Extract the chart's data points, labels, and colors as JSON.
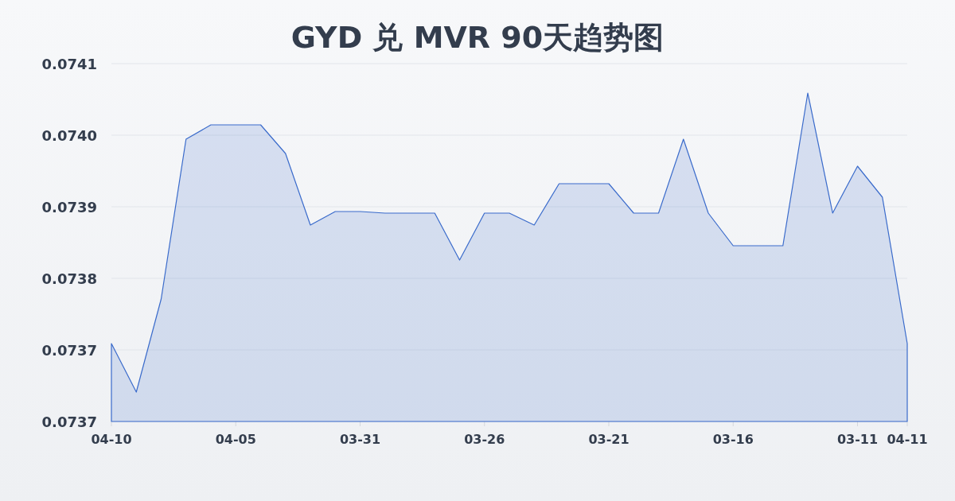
{
  "chart_data": {
    "type": "area",
    "title": "GYD 兑 MVR 90天趋势图",
    "categories": [
      "04-10",
      null,
      null,
      null,
      null,
      "04-05",
      null,
      null,
      null,
      null,
      "03-31",
      null,
      null,
      null,
      null,
      "03-26",
      null,
      null,
      null,
      null,
      "03-21",
      null,
      null,
      null,
      null,
      "03-16",
      null,
      null,
      null,
      null,
      "03-11",
      null,
      "04-11"
    ],
    "values": [
      0.073748,
      0.073687,
      0.073804,
      0.074005,
      0.074023,
      0.074023,
      0.074023,
      0.073987,
      0.073897,
      0.073914,
      0.073914,
      0.073912,
      0.073912,
      0.073912,
      0.073853,
      0.073912,
      0.073912,
      0.073897,
      0.073949,
      0.073949,
      0.073949,
      0.073912,
      0.073912,
      0.074005,
      0.073912,
      0.073871,
      0.073871,
      0.073871,
      0.074063,
      0.073912,
      0.073971,
      0.073932,
      0.073748
    ],
    "color": "#3a6bcb",
    "ylim": [
      0.07365,
      0.0741
    ],
    "yticks": [
      {
        "value": 0.07365,
        "label": "0.0737"
      },
      {
        "value": 0.07374,
        "label": "0.0737"
      },
      {
        "value": 0.07383,
        "label": "0.0738"
      },
      {
        "value": 0.07392,
        "label": "0.0739"
      },
      {
        "value": 0.07401,
        "label": "0.0740"
      },
      {
        "value": 0.0741,
        "label": "0.0741"
      }
    ],
    "grid": "y"
  }
}
